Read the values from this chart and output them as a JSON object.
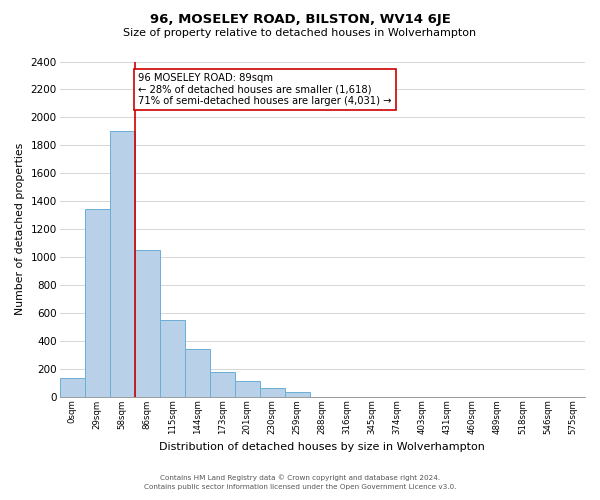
{
  "title": "96, MOSELEY ROAD, BILSTON, WV14 6JE",
  "subtitle": "Size of property relative to detached houses in Wolverhampton",
  "xlabel": "Distribution of detached houses by size in Wolverhampton",
  "ylabel": "Number of detached properties",
  "bin_labels": [
    "0sqm",
    "29sqm",
    "58sqm",
    "86sqm",
    "115sqm",
    "144sqm",
    "173sqm",
    "201sqm",
    "230sqm",
    "259sqm",
    "288sqm",
    "316sqm",
    "345sqm",
    "374sqm",
    "403sqm",
    "431sqm",
    "460sqm",
    "489sqm",
    "518sqm",
    "546sqm",
    "575sqm"
  ],
  "bar_heights": [
    130,
    1340,
    1900,
    1050,
    550,
    340,
    175,
    110,
    60,
    30,
    0,
    0,
    0,
    0,
    0,
    0,
    0,
    0,
    0,
    0,
    0
  ],
  "bar_color": "#b8d0e8",
  "bar_edge_color": "#6aaed6",
  "vline_x": 3,
  "vline_color": "#cc0000",
  "annotation_title": "96 MOSELEY ROAD: 89sqm",
  "annotation_line1": "← 28% of detached houses are smaller (1,618)",
  "annotation_line2": "71% of semi-detached houses are larger (4,031) →",
  "annotation_box_color": "#ffffff",
  "annotation_box_edge": "#cc0000",
  "ylim": [
    0,
    2400
  ],
  "yticks": [
    0,
    200,
    400,
    600,
    800,
    1000,
    1200,
    1400,
    1600,
    1800,
    2000,
    2200,
    2400
  ],
  "footer1": "Contains HM Land Registry data © Crown copyright and database right 2024.",
  "footer2": "Contains public sector information licensed under the Open Government Licence v3.0."
}
